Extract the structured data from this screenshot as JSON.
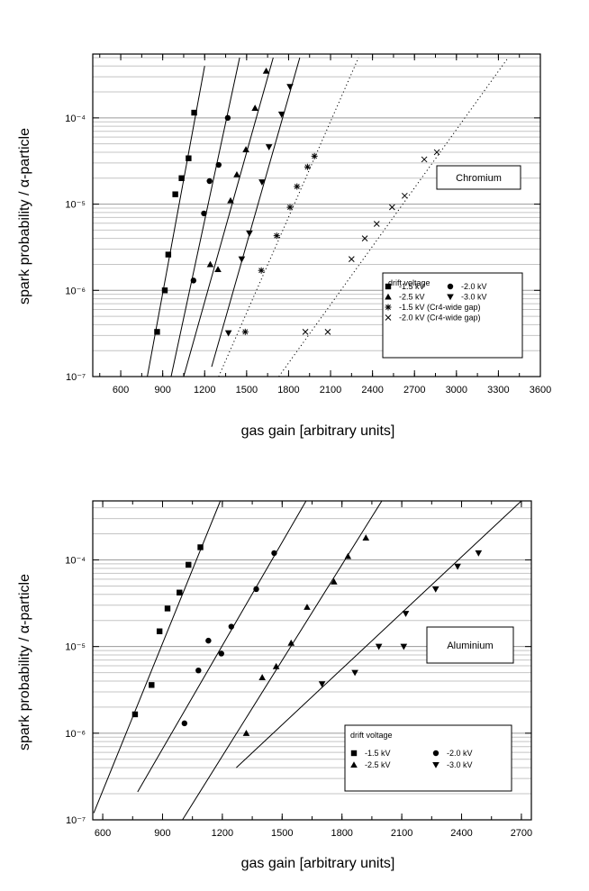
{
  "chart_data": [
    {
      "type": "scatter",
      "label_box": "Chromium",
      "xlabel": "gas gain [arbitrary units]",
      "ylabel": "spark probability / α-particle",
      "xticks": [
        "600",
        "900",
        "1200",
        "1500",
        "1800",
        "2100",
        "2400",
        "2700",
        "3000",
        "3300",
        "3600"
      ],
      "yticks": [
        "10⁻⁷",
        "10⁻⁶",
        "10⁻⁵",
        "10⁻⁴"
      ],
      "xlim": [
        400,
        3600
      ],
      "ylim": [
        1e-07,
        0.00055
      ],
      "y_scale": "log",
      "grid": "horizontal",
      "legend_title": "drift voltage",
      "legend_placement": "bottom-right",
      "series": [
        {
          "name": "-1.5 kV",
          "marker": "square",
          "points": [
            [
              860,
              3.3e-07
            ],
            [
              915,
              1e-06
            ],
            [
              940,
              2.6e-06
            ],
            [
              990,
              1.3e-05
            ],
            [
              1035,
              2e-05
            ],
            [
              1085,
              3.4e-05
            ],
            [
              1125,
              0.000115
            ]
          ],
          "fit": {
            "line": "solid",
            "x1": 790,
            "y1": 1e-07,
            "x2": 1200,
            "y2": 0.0004
          }
        },
        {
          "name": "-2.0 kV",
          "marker": "circle",
          "points": [
            [
              1120,
              1.3e-06
            ],
            [
              1195,
              7.8e-06
            ],
            [
              1235,
              1.85e-05
            ],
            [
              1300,
              2.85e-05
            ],
            [
              1365,
              0.0001
            ]
          ],
          "fit": {
            "line": "solid",
            "x1": 960,
            "y1": 1e-07,
            "x2": 1450,
            "y2": 0.0005
          }
        },
        {
          "name": "-2.5 kV",
          "marker": "triangle-up",
          "points": [
            [
              1240,
              2e-06
            ],
            [
              1295,
              1.75e-06
            ],
            [
              1385,
              1.1e-05
            ],
            [
              1430,
              2.2e-05
            ],
            [
              1495,
              4.3e-05
            ],
            [
              1560,
              0.00013
            ],
            [
              1640,
              0.00035
            ]
          ],
          "fit": {
            "line": "solid",
            "x1": 1050,
            "y1": 1e-07,
            "x2": 1690,
            "y2": 0.0005
          }
        },
        {
          "name": "-3.0 kV",
          "marker": "triangle-down",
          "points": [
            [
              1370,
              3.2e-07
            ],
            [
              1465,
              2.3e-06
            ],
            [
              1520,
              4.6e-06
            ],
            [
              1610,
              1.8e-05
            ],
            [
              1660,
              4.6e-05
            ],
            [
              1750,
              0.00011
            ],
            [
              1810,
              0.00023
            ]
          ],
          "fit": {
            "line": "solid",
            "x1": 1250,
            "y1": 1.3e-07,
            "x2": 1880,
            "y2": 0.0005
          }
        },
        {
          "name": "-1.5 kV (Cr4-wide gap)",
          "marker": "asterisk",
          "points": [
            [
              1490,
              3.3e-07
            ],
            [
              1605,
              1.7e-06
            ],
            [
              1715,
              4.3e-06
            ],
            [
              1810,
              9.2e-06
            ],
            [
              1860,
              1.6e-05
            ],
            [
              1935,
              2.7e-05
            ],
            [
              1985,
              3.6e-05
            ]
          ],
          "fit": {
            "line": "dotted",
            "x1": 1300,
            "y1": 1e-07,
            "x2": 2300,
            "y2": 0.0005
          }
        },
        {
          "name": "-2.0 kV (Cr4-wide gap)",
          "marker": "cross",
          "points": [
            [
              1920,
              3.3e-07
            ],
            [
              2080,
              3.3e-07
            ],
            [
              2250,
              2.3e-06
            ],
            [
              2345,
              4e-06
            ],
            [
              2430,
              5.9e-06
            ],
            [
              2540,
              9.2e-06
            ],
            [
              2630,
              1.25e-05
            ],
            [
              2770,
              3.3e-05
            ],
            [
              2860,
              4e-05
            ]
          ],
          "fit": {
            "line": "dotted",
            "x1": 1730,
            "y1": 1e-07,
            "x2": 3370,
            "y2": 0.0005
          }
        }
      ]
    },
    {
      "type": "scatter",
      "label_box": "Aluminium",
      "xlabel": "gas gain [arbitrary units]",
      "ylabel": "spark probability / α-particle",
      "xticks": [
        "600",
        "900",
        "1200",
        "1500",
        "1800",
        "2100",
        "2400",
        "2700"
      ],
      "yticks": [
        "10⁻⁷",
        "10⁻⁶",
        "10⁻⁵",
        "10⁻⁴"
      ],
      "xlim": [
        550,
        2750
      ],
      "ylim": [
        1e-07,
        0.00048
      ],
      "y_scale": "log",
      "grid": "horizontal",
      "legend_title": "drift voltage",
      "legend_placement": "bottom-right",
      "series": [
        {
          "name": "-1.5 kV",
          "marker": "square",
          "points": [
            [
              762,
              1.65e-06
            ],
            [
              845,
              3.6e-06
            ],
            [
              885,
              1.5e-05
            ],
            [
              925,
              2.75e-05
            ],
            [
              985,
              4.2e-05
            ],
            [
              1030,
              8.8e-05
            ],
            [
              1090,
              0.00014
            ]
          ],
          "fit": {
            "line": "solid",
            "x1": 555,
            "y1": 1.2e-07,
            "x2": 1190,
            "y2": 0.00048
          }
        },
        {
          "name": "-2.0 kV",
          "marker": "circle",
          "points": [
            [
              1010,
              1.3e-06
            ],
            [
              1080,
              5.3e-06
            ],
            [
              1130,
              1.17e-05
            ],
            [
              1195,
              8.3e-06
            ],
            [
              1245,
              1.7e-05
            ],
            [
              1370,
              4.6e-05
            ],
            [
              1460,
              0.00012
            ]
          ],
          "fit": {
            "line": "solid",
            "x1": 775,
            "y1": 2.1e-07,
            "x2": 1620,
            "y2": 0.00048
          }
        },
        {
          "name": "-2.5 kV",
          "marker": "triangle-up",
          "points": [
            [
              1320,
              1e-06
            ],
            [
              1400,
              4.4e-06
            ],
            [
              1470,
              5.9e-06
            ],
            [
              1545,
              1.1e-05
            ],
            [
              1625,
              2.85e-05
            ],
            [
              1760,
              5.6e-05
            ],
            [
              1830,
              0.00011
            ],
            [
              1920,
              0.00018
            ]
          ],
          "fit": {
            "line": "solid",
            "x1": 1000,
            "y1": 1e-07,
            "x2": 2000,
            "y2": 0.00048
          }
        },
        {
          "name": "-3.0 kV",
          "marker": "triangle-down",
          "points": [
            [
              1700,
              3.7e-06
            ],
            [
              1865,
              5e-06
            ],
            [
              1985,
              1e-05
            ],
            [
              2110,
              1e-05
            ],
            [
              2120,
              2.4e-05
            ],
            [
              2270,
              4.6e-05
            ],
            [
              2380,
              8.4e-05
            ],
            [
              2485,
              0.00012
            ]
          ],
          "fit": {
            "line": "solid",
            "x1": 1270,
            "y1": 4e-07,
            "x2": 2700,
            "y2": 0.00048
          }
        }
      ]
    }
  ]
}
